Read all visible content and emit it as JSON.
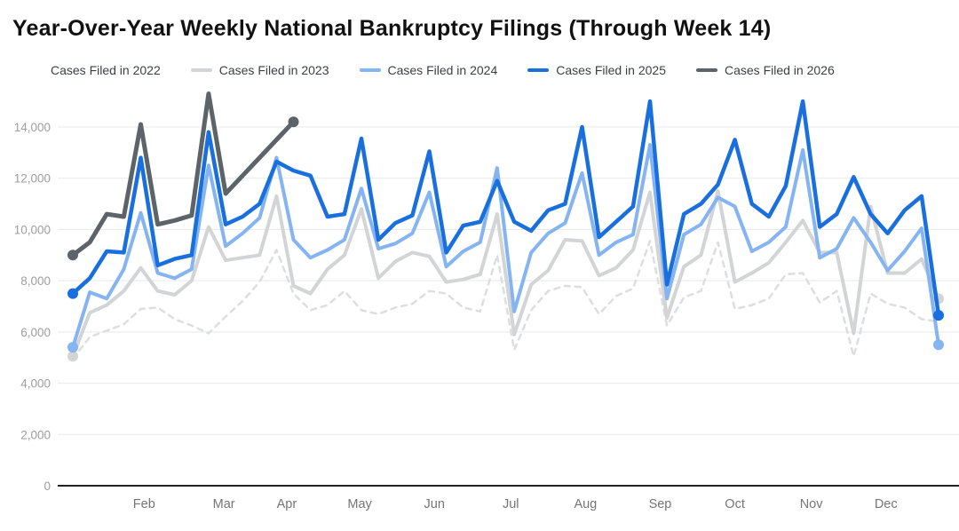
{
  "header": {
    "title": "Year-Over-Year Weekly National Bankruptcy Filings (Through Week 14)"
  },
  "colors": {
    "background": "#ffffff",
    "title_text": "#111111",
    "legend_text": "#3c4043",
    "axis_text": "#9e9e9e",
    "month_text": "#757575",
    "gridline": "#e9e9e9",
    "baseline": "#212121",
    "series_2022": "#dcdee0",
    "series_2023": "#d2d4d6",
    "series_2024": "#85b4f2",
    "series_2025": "#1a6fdf",
    "series_2026": "#5c6369"
  },
  "chart_data": {
    "type": "line",
    "title": "Year-Over-Year Weekly National Bankruptcy Filings (Through Week 14)",
    "xlabel": "",
    "ylabel": "",
    "x_unit": "week of year (1-52)",
    "ylim": [
      0,
      14000
    ],
    "y_tick_step": 2000,
    "y_tick_labels": [
      "0",
      "2,000",
      "4,000",
      "6,000",
      "8,000",
      "10,000",
      "12,000",
      "14,000"
    ],
    "grid": true,
    "legend_position": "top",
    "month_ticks": [
      {
        "label": "Feb",
        "week": 5.2
      },
      {
        "label": "Mar",
        "week": 9.9
      },
      {
        "label": "Apr",
        "week": 13.6
      },
      {
        "label": "May",
        "week": 17.9
      },
      {
        "label": "Jun",
        "week": 22.3
      },
      {
        "label": "Jul",
        "week": 26.8
      },
      {
        "label": "Aug",
        "week": 31.2
      },
      {
        "label": "Sep",
        "week": 35.6
      },
      {
        "label": "Oct",
        "week": 40.0
      },
      {
        "label": "Nov",
        "week": 44.5
      },
      {
        "label": "Dec",
        "week": 48.9
      }
    ],
    "series": [
      {
        "name": "Cases Filed in 2022",
        "color": "#dcdee0",
        "dashed": true,
        "line_width": 2.5,
        "endpoint_dots": false,
        "values": [
          4950,
          5800,
          6050,
          6300,
          6900,
          6950,
          6500,
          6250,
          5950,
          6600,
          7200,
          7950,
          9200,
          7500,
          6850,
          7050,
          7600,
          6850,
          6700,
          6950,
          7100,
          7600,
          7500,
          6950,
          6800,
          9000,
          5300,
          6850,
          7600,
          7800,
          7750,
          6700,
          7400,
          7700,
          9550,
          6250,
          7350,
          7600,
          9500,
          6900,
          7050,
          7300,
          8250,
          8300,
          7150,
          7600,
          5050,
          7500,
          7100,
          6950,
          6500,
          6400
        ]
      },
      {
        "name": "Cases Filed in 2023",
        "color": "#d2d4d6",
        "dashed": false,
        "line_width": 4,
        "endpoint_dots": true,
        "values": [
          5050,
          6750,
          7050,
          7600,
          8500,
          7600,
          7450,
          8000,
          10100,
          8800,
          8900,
          9000,
          11300,
          7800,
          7500,
          8450,
          9000,
          10800,
          8100,
          8750,
          9100,
          8950,
          7950,
          8050,
          8250,
          10600,
          5900,
          7850,
          8400,
          9600,
          9550,
          8200,
          8500,
          9200,
          11450,
          6550,
          8550,
          9000,
          11500,
          7950,
          8300,
          8700,
          9500,
          10350,
          9100,
          9100,
          5950,
          10900,
          8300,
          8300,
          8850,
          7300
        ]
      },
      {
        "name": "Cases Filed in 2024",
        "color": "#85b4f2",
        "dashed": false,
        "line_width": 4,
        "endpoint_dots": true,
        "values": [
          5400,
          7550,
          7300,
          8450,
          10650,
          8300,
          8100,
          8450,
          12500,
          9350,
          9850,
          10450,
          12800,
          9600,
          8900,
          9200,
          9600,
          11600,
          9250,
          9450,
          9850,
          11450,
          8550,
          9150,
          9500,
          12400,
          6800,
          9100,
          9850,
          10250,
          12200,
          9000,
          9500,
          9800,
          13300,
          7300,
          9800,
          10200,
          11250,
          10900,
          9150,
          9500,
          10100,
          13100,
          8900,
          9250,
          10450,
          9500,
          8400,
          9150,
          10050,
          5500
        ]
      },
      {
        "name": "Cases Filed in 2025",
        "color": "#1a6fdf",
        "dashed": false,
        "line_width": 4.5,
        "endpoint_dots": true,
        "values": [
          7500,
          8100,
          9150,
          9100,
          12800,
          8600,
          8850,
          9000,
          13800,
          10200,
          10500,
          11000,
          12650,
          12300,
          12100,
          10500,
          10600,
          13550,
          9600,
          10250,
          10550,
          13050,
          9100,
          10150,
          10300,
          11900,
          10300,
          9950,
          10750,
          11000,
          14000,
          9700,
          10300,
          10900,
          15000,
          7850,
          10600,
          11000,
          11750,
          13500,
          11000,
          10500,
          11700,
          15000,
          10100,
          10600,
          12050,
          10600,
          9850,
          10750,
          11300,
          6650
        ]
      },
      {
        "name": "Cases Filed in 2026",
        "color": "#5c6369",
        "dashed": false,
        "line_width": 5,
        "endpoint_dots": true,
        "note": "data through week 14 only",
        "values": [
          9000,
          9500,
          10600,
          10500,
          14100,
          10200,
          10350,
          10550,
          15300,
          11400,
          12100,
          12800,
          13500,
          14200
        ]
      }
    ]
  }
}
